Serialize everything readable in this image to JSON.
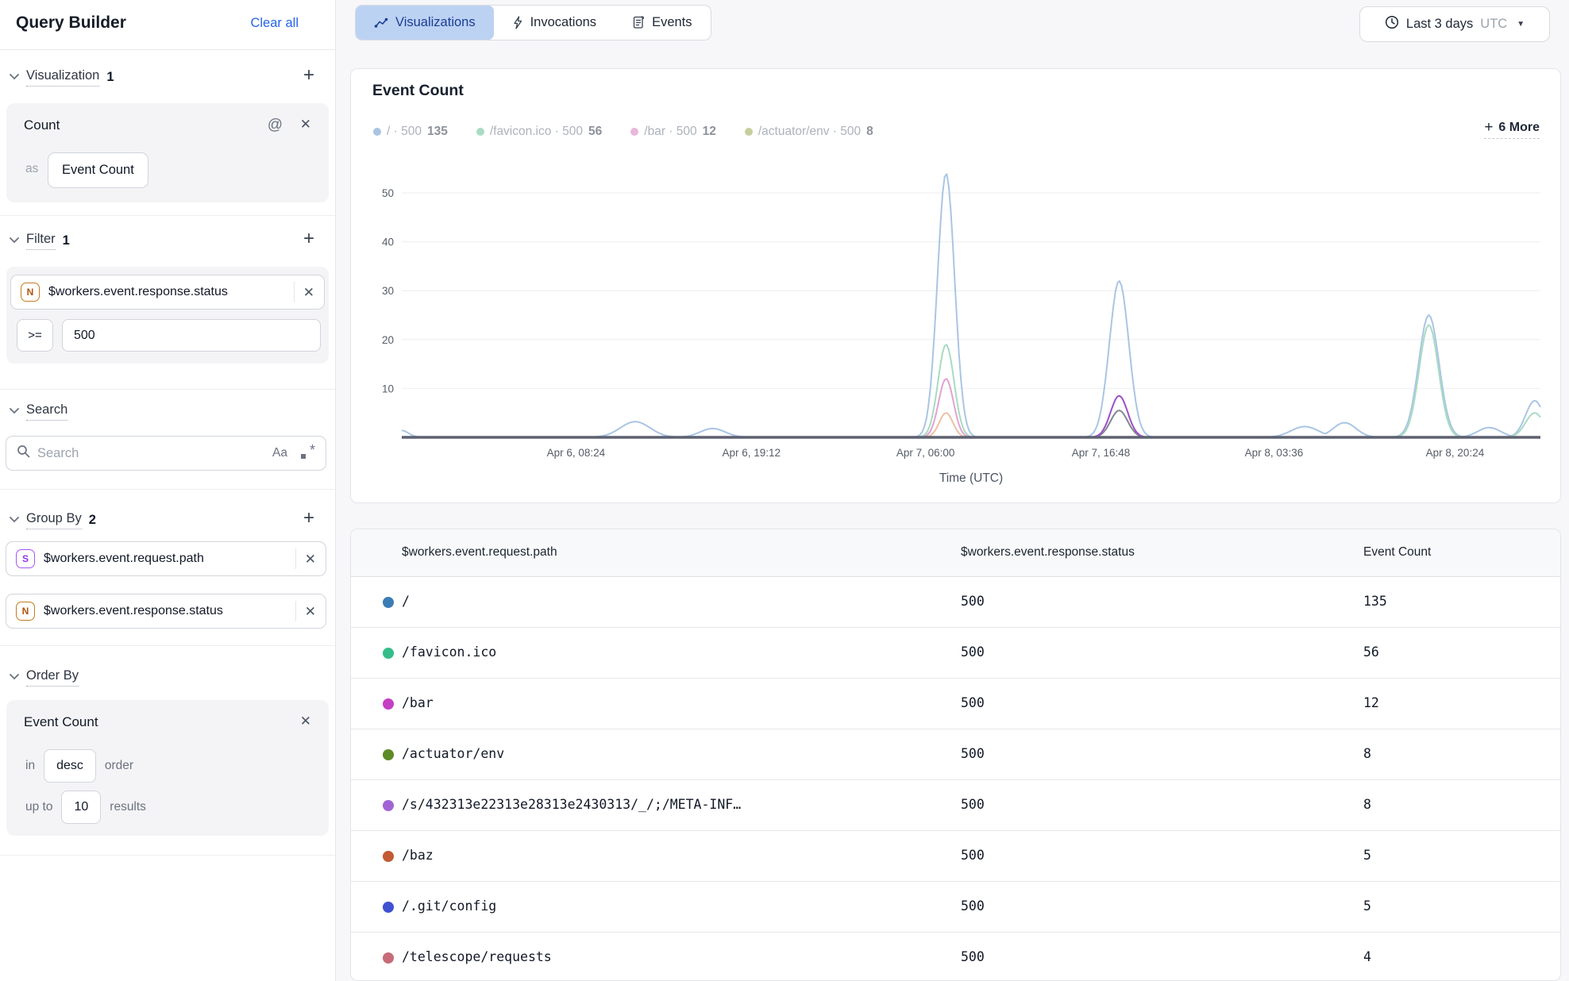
{
  "sidebar": {
    "title": "Query Builder",
    "clear_all": "Clear all",
    "visualization": {
      "label": "Visualization",
      "count": "1",
      "card": {
        "metric": "Count",
        "as_label": "as",
        "alias": "Event Count"
      }
    },
    "filter": {
      "label": "Filter",
      "count": "1",
      "field": {
        "type_badge": "N",
        "name": "$workers.event.response.status"
      },
      "operator": ">=",
      "value": "500"
    },
    "search": {
      "label": "Search",
      "placeholder": "Search"
    },
    "group_by": {
      "label": "Group By",
      "count": "2",
      "fields": [
        {
          "type_badge": "S",
          "name": "$workers.event.request.path"
        },
        {
          "type_badge": "N",
          "name": "$workers.event.response.status"
        }
      ]
    },
    "order_by": {
      "label": "Order By",
      "card": {
        "field": "Event Count",
        "in_label": "in",
        "direction": "desc",
        "order_label": "order",
        "up_to_label": "up to",
        "limit": "10",
        "results_label": "results"
      }
    }
  },
  "icons": {
    "at": "@",
    "close": "✕",
    "plus": "+",
    "caret": "▼",
    "case_sensitivity": "Aa",
    "regex_star": "*",
    "more_plus": "+"
  },
  "tabs": [
    {
      "label": "Visualizations",
      "icon": "line-chart-icon",
      "active": true
    },
    {
      "label": "Invocations",
      "icon": "lightning-icon",
      "active": false
    },
    {
      "label": "Events",
      "icon": "document-icon",
      "active": false
    }
  ],
  "time_range": {
    "label": "Last 3 days",
    "timezone": "UTC"
  },
  "chart_card": {
    "title": "Event Count",
    "more_label": "6 More",
    "legend": [
      {
        "path": "/",
        "status": "500",
        "count": "135",
        "color": "#a9c4e3"
      },
      {
        "path": "/favicon.ico",
        "status": "500",
        "count": "56",
        "color": "#a9dcc3"
      },
      {
        "path": "/bar",
        "status": "500",
        "count": "12",
        "color": "#e8b7da"
      },
      {
        "path": "/actuator/env",
        "status": "500",
        "count": "8",
        "color": "#c5cf9e"
      }
    ]
  },
  "chart_data": {
    "type": "line",
    "title": "Event Count",
    "xlabel": "Time (UTC)",
    "ylabel": "",
    "ylim": [
      0,
      56
    ],
    "yticks": [
      10,
      20,
      30,
      40,
      50
    ],
    "grid": "horizontal",
    "xticks": [
      {
        "label": "Apr 6, 08:24",
        "f": 0.153
      },
      {
        "label": "Apr 6, 19:12",
        "f": 0.307
      },
      {
        "label": "Apr 7, 06:00",
        "f": 0.46
      },
      {
        "label": "Apr 7, 16:48",
        "f": 0.614
      },
      {
        "label": "Apr 8, 03:36",
        "f": 0.766
      },
      {
        "label": "Apr 8, 20:24",
        "f": 0.925
      }
    ],
    "series": [
      {
        "name": "/ · 500",
        "color": "#aac5e4",
        "peaks": [
          [
            0.0,
            1.4,
            0.006
          ],
          [
            0.205,
            3.2,
            0.013
          ],
          [
            0.273,
            1.8,
            0.011
          ],
          [
            0.478,
            54,
            0.0075
          ],
          [
            0.63,
            32,
            0.0085
          ],
          [
            0.793,
            2.2,
            0.012
          ],
          [
            0.828,
            3.0,
            0.01
          ],
          [
            0.902,
            25,
            0.009
          ],
          [
            0.955,
            2.0,
            0.01
          ],
          [
            0.995,
            7.5,
            0.008
          ]
        ]
      },
      {
        "name": "/favicon.ico · 500",
        "color": "#a8dcc0",
        "peaks": [
          [
            0.478,
            19,
            0.007
          ],
          [
            0.902,
            23,
            0.0085
          ],
          [
            0.995,
            5,
            0.008
          ]
        ]
      },
      {
        "name": "/bar · 500",
        "color": "#e2a2d4",
        "peaks": [
          [
            0.478,
            12,
            0.0065
          ]
        ]
      },
      {
        "name": "/baz · 500",
        "color": "#ecc0a4",
        "peaks": [
          [
            0.478,
            5,
            0.006
          ]
        ]
      },
      {
        "name": "/.git/config · 500",
        "color": "#82868f",
        "peaks": [
          [
            0.63,
            5.5,
            0.0075
          ]
        ]
      },
      {
        "name": "/s/... · 500",
        "color": "#9b4fc6",
        "peaks": [
          [
            0.63,
            8.5,
            0.0075
          ]
        ]
      }
    ]
  },
  "table": {
    "columns": [
      "$workers.event.request.path",
      "$workers.event.response.status",
      "Event Count"
    ],
    "rows": [
      {
        "color": "#3b7cb5",
        "path": "/",
        "status": "500",
        "count": "135"
      },
      {
        "color": "#34bd89",
        "path": "/favicon.ico",
        "status": "500",
        "count": "56"
      },
      {
        "color": "#c43fc4",
        "path": "/bar",
        "status": "500",
        "count": "12"
      },
      {
        "color": "#5c8b26",
        "path": "/actuator/env",
        "status": "500",
        "count": "8"
      },
      {
        "color": "#a164d4",
        "path": "/s/432313e22313e28313e2430313/_/;/META-INF…",
        "status": "500",
        "count": "8"
      },
      {
        "color": "#c25b33",
        "path": "/baz",
        "status": "500",
        "count": "5"
      },
      {
        "color": "#3f51d1",
        "path": "/.git/config",
        "status": "500",
        "count": "5"
      },
      {
        "color": "#c76b78",
        "path": "/telescope/requests",
        "status": "500",
        "count": "4"
      }
    ]
  }
}
